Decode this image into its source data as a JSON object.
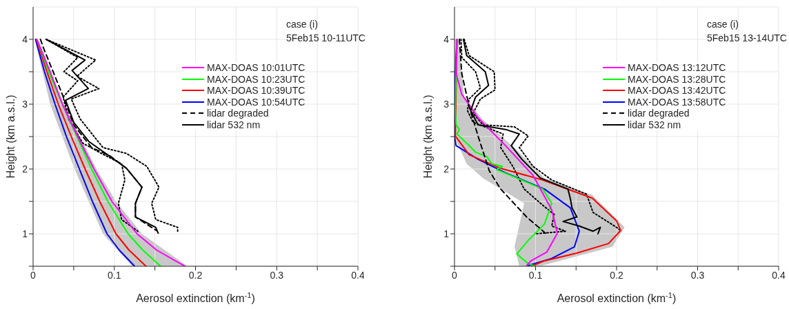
{
  "chart_data": [
    {
      "type": "line",
      "title": "case (i)",
      "subtitle": "5Feb15 10-11UTC",
      "xlabel": "Aerosol extinction (km$^{-1}$)",
      "ylabel": "Height (km a.s.l.)",
      "xlim": [
        0,
        0.4
      ],
      "xticks": [
        0,
        {
          "value": 0.05,
          "label": null
        },
        0.1,
        {
          "value": 0.15,
          "label": null
        },
        0.2,
        {
          "value": 0.25,
          "label": null
        },
        0.3,
        {
          "value": 0.35,
          "label": null
        },
        0.4
      ],
      "ylim": [
        0.5,
        4.5
      ],
      "yticks": [
        {
          "value": 0.5,
          "label": null
        },
        1,
        {
          "value": 1.5,
          "label": null
        },
        2,
        {
          "value": 2.5,
          "label": null
        },
        3,
        {
          "value": 3.5,
          "label": null
        },
        4
      ],
      "grid": true,
      "legend": "top right",
      "series": [
        {
          "type": "area",
          "color": "#c8c8c8",
          "x": [
            0.002,
            0.021,
            0.051,
            0.086,
            0.122,
            0.19,
            0.134,
            0.102,
            0.078,
            0.038,
            0.006
          ],
          "values": [
            4,
            3,
            2,
            1,
            0.5,
            0.5,
            1,
            1.5,
            2,
            3,
            4
          ]
        },
        {
          "name": "MAX-DOAS 10:01UTC",
          "color": "#ff00ff",
          "line_style": "solid",
          "x": [
            0.0045,
            0.021,
            0.036,
            0.055,
            0.075,
            0.097,
            0.128,
            0.152,
            0.187
          ],
          "values": [
            4,
            3.5,
            3,
            2.5,
            2,
            1.5,
            1,
            0.75,
            0.5
          ]
        },
        {
          "name": "MAX-DOAS 10:23UTC",
          "color": "#00ff00",
          "line_style": "solid",
          "x": [
            0.0045,
            0.019,
            0.036,
            0.054,
            0.072,
            0.092,
            0.117,
            0.135,
            0.157
          ],
          "values": [
            4,
            3.5,
            3,
            2.5,
            2,
            1.5,
            1,
            0.75,
            0.5
          ]
        },
        {
          "name": "MAX-DOAS 10:39UTC",
          "color": "#ff0000",
          "line_style": "solid",
          "x": [
            0.004,
            0.017,
            0.031,
            0.047,
            0.064,
            0.082,
            0.102,
            0.118,
            0.139
          ],
          "values": [
            4,
            3.5,
            3,
            2.5,
            2,
            1.5,
            1,
            0.75,
            0.5
          ]
        },
        {
          "name": "MAX-DOAS 10:54UTC",
          "color": "#0000ff",
          "line_style": "solid",
          "x": [
            0.003,
            0.014,
            0.027,
            0.041,
            0.057,
            0.073,
            0.091,
            0.106,
            0.125
          ],
          "values": [
            4,
            3.5,
            3,
            2.5,
            2,
            1.5,
            1,
            0.75,
            0.5
          ]
        },
        {
          "name": "lidar degraded",
          "color": "#000000",
          "line_style": "dashed",
          "x": [
            0.009,
            0.013,
            0.036,
            0.05,
            0.072,
            0.095,
            0.115,
            0.134,
            0.126,
            0.126,
            0.152
          ],
          "values": [
            4,
            3.86,
            3.15,
            2.68,
            2.33,
            2.2,
            2.01,
            1.72,
            1.47,
            1.26,
            1.05
          ]
        },
        {
          "name": "lidar 532 nm",
          "color": "#000000",
          "line_style": "solid",
          "x": [
            0.016,
            0.064,
            0.048,
            0.068,
            0.04,
            0.05,
            0.069,
            0.095,
            0.115,
            0.134,
            0.126,
            0.126,
            0.151,
            0.154
          ],
          "values": [
            4,
            3.68,
            3.52,
            3.24,
            3.06,
            2.72,
            2.42,
            2.19,
            2.01,
            1.72,
            1.47,
            1.26,
            1.1,
            1.01
          ]
        },
        {
          "color": "#000000",
          "line_style": "dotted",
          "x": [
            0.016,
            0.077,
            0.054,
            0.081,
            0.047,
            0.058,
            0.086,
            0.115,
            0.14,
            0.155,
            0.146,
            0.151,
            0.178,
            0.178
          ],
          "values": [
            4,
            3.68,
            3.43,
            3.24,
            3.08,
            2.77,
            2.33,
            2.24,
            2.04,
            1.72,
            1.47,
            1.22,
            1.1,
            1.01
          ]
        },
        {
          "color": "#000000",
          "line_style": "dotted",
          "x": [
            0.016,
            0.055,
            0.038,
            0.055,
            0.037,
            0.044,
            0.061,
            0.084,
            0.109,
            0.113,
            0.105,
            0.109,
            0.129
          ],
          "values": [
            4,
            3.72,
            3.5,
            3.36,
            3.11,
            2.76,
            2.4,
            2.24,
            2.08,
            1.83,
            1.47,
            1.22,
            1.04
          ]
        }
      ]
    },
    {
      "type": "line",
      "title": "case (i)",
      "subtitle": "5Feb15 13-14UTC",
      "xlabel": "Aerosol extinction (km$^{-1}$)",
      "ylabel": "Height (km a.s.l.)",
      "xlim": [
        0,
        0.4
      ],
      "xticks": [
        0,
        {
          "value": 0.05,
          "label": null
        },
        0.1,
        {
          "value": 0.15,
          "label": null
        },
        0.2,
        {
          "value": 0.25,
          "label": null
        },
        0.3,
        {
          "value": 0.35,
          "label": null
        },
        0.4
      ],
      "ylim": [
        0.5,
        4.5
      ],
      "yticks": [
        {
          "value": 0.5,
          "label": null
        },
        1,
        {
          "value": 1.5,
          "label": null
        },
        2,
        {
          "value": 2.5,
          "label": null
        },
        3,
        {
          "value": 3.5,
          "label": null
        },
        4
      ],
      "grid": true,
      "legend": "top right",
      "series": [
        {
          "type": "area",
          "color": "#c8c8c8",
          "x": [
            0,
            0,
            0.015,
            0.035,
            0.086,
            0.074,
            0.08,
            0.105,
            0.12,
            0.195,
            0.21,
            0.17,
            0.111,
            0.077,
            0.035,
            0.012,
            0.005
          ],
          "values": [
            4,
            2.5,
            2.08,
            1.86,
            1.47,
            0.8,
            0.5,
            0.5,
            0.55,
            0.8,
            1.1,
            1.6,
            1.86,
            2.29,
            2.76,
            3.11,
            4
          ]
        },
        {
          "name": "MAX-DOAS 13:12UTC",
          "color": "#ff00ff",
          "line_style": "solid",
          "x": [
            0.003,
            0.002,
            0.009,
            0.029,
            0.063,
            0.097,
            0.12,
            0.127,
            0.114,
            0.094,
            0.089
          ],
          "values": [
            4,
            3.47,
            3.15,
            2.79,
            2.36,
            1.9,
            1.37,
            1.01,
            0.72,
            0.58,
            0.51
          ]
        },
        {
          "name": "MAX-DOAS 13:28UTC",
          "color": "#00ff00",
          "line_style": "solid",
          "x": [
            0.003,
            0.001,
            0.002,
            0.006,
            0.003,
            0.015,
            0.026,
            0.04,
            0.046,
            0.059,
            0.052,
            0.077,
            0.109,
            0.12,
            0.111,
            0.091,
            0.077,
            0.09,
            0.099
          ],
          "values": [
            4,
            2.93,
            2.68,
            2.61,
            2.54,
            2.4,
            2.26,
            2.19,
            2.08,
            2.04,
            1.99,
            1.86,
            1.69,
            1.47,
            1.15,
            0.9,
            0.69,
            0.55,
            0.5
          ]
        },
        {
          "name": "MAX-DOAS 13:42UTC",
          "color": "#ff0000",
          "line_style": "solid",
          "x": [
            0.003,
            0.001,
            0.018,
            0.057,
            0.109,
            0.17,
            0.2,
            0.205,
            0.19,
            0.15,
            0.11,
            0.095
          ],
          "values": [
            4,
            2.51,
            2.22,
            2.01,
            1.83,
            1.55,
            1.2,
            1.05,
            0.85,
            0.7,
            0.58,
            0.5
          ]
        },
        {
          "name": "MAX-DOAS 13:58UTC",
          "color": "#0000ff",
          "line_style": "solid",
          "x": [
            0.003,
            0.001,
            0,
            0.002,
            0.029,
            0.063,
            0.111,
            0.143,
            0.154,
            0.148,
            0.12,
            0.091
          ],
          "values": [
            4,
            3.47,
            2.5,
            2.36,
            2.15,
            1.94,
            1.69,
            1.4,
            1.04,
            0.8,
            0.62,
            0.51
          ]
        },
        {
          "name": "lidar degraded",
          "color": "#000000",
          "line_style": "dashed",
          "x": [
            0.006,
            0.009,
            0.018,
            0.029,
            0.043,
            0.057,
            0.089,
            0.114
          ],
          "values": [
            4,
            3.47,
            2.97,
            2.51,
            1.97,
            1.69,
            1.26,
            0.99
          ]
        },
        {
          "name": "lidar 532 nm",
          "color": "#000000",
          "line_style": "solid",
          "x": [
            0.011,
            0.015,
            0.038,
            0.042,
            0.026,
            0.02,
            0.029,
            0.063,
            0.08,
            0.07,
            0.083,
            0.106,
            0.14,
            0.143,
            0.145,
            0.151,
            0.134,
            0.154,
            0.171,
            0.18,
            0.177
          ],
          "values": [
            4,
            3.75,
            3.5,
            3.29,
            3.11,
            2.9,
            2.68,
            2.61,
            2.54,
            2.36,
            2.15,
            1.86,
            1.69,
            1.54,
            1.4,
            1.26,
            1.19,
            1.12,
            1.04,
            1.1,
            1.0
          ]
        },
        {
          "color": "#000000",
          "line_style": "dotted",
          "x": [
            0.012,
            0.018,
            0.049,
            0.05,
            0.032,
            0.023,
            0.035,
            0.074,
            0.091,
            0.08,
            0.097,
            0.12,
            0.163,
            0.171,
            0.2,
            0.205
          ],
          "values": [
            4,
            3.75,
            3.5,
            3.22,
            3.08,
            2.86,
            2.68,
            2.65,
            2.51,
            2.33,
            2.04,
            1.83,
            1.61,
            1.33,
            1.1,
            1.05
          ]
        },
        {
          "color": "#000000",
          "line_style": "dotted",
          "x": [
            0.008,
            0.009,
            0.026,
            0.032,
            0.018,
            0.016,
            0.023,
            0.06,
            0.057,
            0.072,
            0.086,
            0.109,
            0.123,
            0.12,
            0.137,
            0.1
          ],
          "values": [
            4,
            3.72,
            3.5,
            3.25,
            3.08,
            2.9,
            2.72,
            2.54,
            2.33,
            2.04,
            1.69,
            1.44,
            1.3,
            1.12,
            1.04,
            1.0
          ]
        }
      ]
    }
  ]
}
